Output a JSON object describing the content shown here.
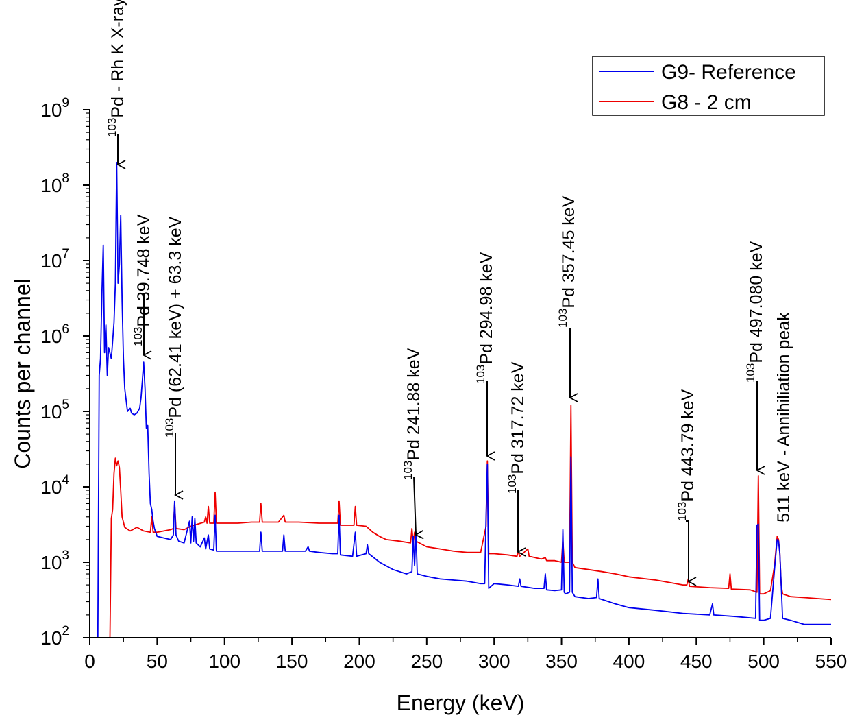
{
  "chart_data": {
    "type": "line",
    "xlabel": "Energy (keV)",
    "ylabel": "Counts per channel",
    "xlim": [
      0,
      550
    ],
    "ylim": [
      100,
      1000000000
    ],
    "yscale": "log",
    "grid": false,
    "legend_position": "top-right",
    "x_ticks": [
      "0",
      "50",
      "100",
      "150",
      "200",
      "250",
      "300",
      "350",
      "400",
      "450",
      "500",
      "550"
    ],
    "y_ticks": [
      {
        "base": "10",
        "exp": "2"
      },
      {
        "base": "10",
        "exp": "3"
      },
      {
        "base": "10",
        "exp": "4"
      },
      {
        "base": "10",
        "exp": "5"
      },
      {
        "base": "10",
        "exp": "6"
      },
      {
        "base": "10",
        "exp": "7"
      },
      {
        "base": "10",
        "exp": "8"
      },
      {
        "base": "10",
        "exp": "9"
      }
    ],
    "series": [
      {
        "name": "G9- Reference",
        "color": "#0000ee",
        "points": [
          [
            6,
            100
          ],
          [
            7,
            300000
          ],
          [
            8,
            500000
          ],
          [
            9,
            3500000
          ],
          [
            10,
            16000000
          ],
          [
            11,
            600000
          ],
          [
            12,
            1400000
          ],
          [
            13,
            300000
          ],
          [
            14,
            700000
          ],
          [
            16,
            500000
          ],
          [
            18,
            1500000
          ],
          [
            19,
            5000000
          ],
          [
            20,
            200000000
          ],
          [
            21,
            5000000
          ],
          [
            22,
            9000000
          ],
          [
            23,
            40000000
          ],
          [
            24,
            3000000
          ],
          [
            25,
            500000
          ],
          [
            26,
            200000
          ],
          [
            28,
            100000
          ],
          [
            30,
            110000
          ],
          [
            31,
            95000
          ],
          [
            33,
            90000
          ],
          [
            35,
            95000
          ],
          [
            37,
            110000
          ],
          [
            38,
            150000
          ],
          [
            39,
            250000
          ],
          [
            40,
            450000
          ],
          [
            41,
            200000
          ],
          [
            42,
            60000
          ],
          [
            43,
            65000
          ],
          [
            44,
            15000
          ],
          [
            45,
            6000
          ],
          [
            46,
            5000
          ],
          [
            47,
            3500
          ],
          [
            48,
            2800
          ],
          [
            50,
            2200
          ],
          [
            55,
            2100
          ],
          [
            60,
            2000
          ],
          [
            62,
            2300
          ],
          [
            63,
            6500
          ],
          [
            64,
            2300
          ],
          [
            66,
            1900
          ],
          [
            70,
            1800
          ],
          [
            74,
            3500
          ],
          [
            75,
            1800
          ],
          [
            76,
            4000
          ],
          [
            77,
            1900
          ],
          [
            78,
            3800
          ],
          [
            79,
            1800
          ],
          [
            82,
            1600
          ],
          [
            85,
            2100
          ],
          [
            86,
            1500
          ],
          [
            88,
            2300
          ],
          [
            89,
            1500
          ],
          [
            92,
            1450
          ],
          [
            93,
            4200
          ],
          [
            94,
            1400
          ],
          [
            100,
            1400
          ],
          [
            110,
            1400
          ],
          [
            120,
            1400
          ],
          [
            126,
            1400
          ],
          [
            127,
            2500
          ],
          [
            128,
            1400
          ],
          [
            140,
            1400
          ],
          [
            143,
            1400
          ],
          [
            144,
            2300
          ],
          [
            145,
            1400
          ],
          [
            160,
            1400
          ],
          [
            162,
            1600
          ],
          [
            163,
            1400
          ],
          [
            170,
            1350
          ],
          [
            180,
            1300
          ],
          [
            184,
            1300
          ],
          [
            185,
            4200
          ],
          [
            186,
            1250
          ],
          [
            195,
            1200
          ],
          [
            197,
            2500
          ],
          [
            198,
            1200
          ],
          [
            205,
            1300
          ],
          [
            206,
            1700
          ],
          [
            207,
            1300
          ],
          [
            215,
            1000
          ],
          [
            225,
            800
          ],
          [
            235,
            700
          ],
          [
            239,
            750
          ],
          [
            240,
            2200
          ],
          [
            241,
            900
          ],
          [
            242,
            2500
          ],
          [
            243,
            700
          ],
          [
            250,
            650
          ],
          [
            260,
            600
          ],
          [
            270,
            580
          ],
          [
            280,
            560
          ],
          [
            290,
            520
          ],
          [
            293,
            520
          ],
          [
            294,
            4000
          ],
          [
            295,
            20000
          ],
          [
            296,
            450
          ],
          [
            300,
            520
          ],
          [
            310,
            500
          ],
          [
            318,
            480
          ],
          [
            319,
            600
          ],
          [
            320,
            480
          ],
          [
            330,
            450
          ],
          [
            337,
            450
          ],
          [
            338,
            700
          ],
          [
            339,
            430
          ],
          [
            345,
            420
          ],
          [
            350,
            430
          ],
          [
            351,
            2700
          ],
          [
            352,
            400
          ],
          [
            353,
            380
          ],
          [
            356,
            400
          ],
          [
            357,
            25000
          ],
          [
            358,
            400
          ],
          [
            360,
            350
          ],
          [
            370,
            330
          ],
          [
            376,
            340
          ],
          [
            377,
            600
          ],
          [
            378,
            330
          ],
          [
            390,
            280
          ],
          [
            400,
            250
          ],
          [
            420,
            230
          ],
          [
            440,
            210
          ],
          [
            460,
            200
          ],
          [
            462,
            280
          ],
          [
            463,
            200
          ],
          [
            480,
            190
          ],
          [
            494,
            180
          ],
          [
            495,
            3100
          ],
          [
            496,
            3200
          ],
          [
            497,
            170
          ],
          [
            500,
            170
          ],
          [
            505,
            180
          ],
          [
            508,
            800
          ],
          [
            510,
            2000
          ],
          [
            511,
            1900
          ],
          [
            512,
            1300
          ],
          [
            513,
            500
          ],
          [
            514,
            180
          ],
          [
            520,
            170
          ],
          [
            530,
            150
          ],
          [
            540,
            150
          ],
          [
            550,
            150
          ]
        ]
      },
      {
        "name": "G8 - 2 cm",
        "color": "#ee0000",
        "points": [
          [
            14,
            100
          ],
          [
            15,
            100
          ],
          [
            16,
            3800
          ],
          [
            17,
            5000
          ],
          [
            18,
            15000
          ],
          [
            19,
            24000
          ],
          [
            20,
            19000
          ],
          [
            21,
            22000
          ],
          [
            22,
            18000
          ],
          [
            23,
            9000
          ],
          [
            24,
            4000
          ],
          [
            26,
            2900
          ],
          [
            30,
            2600
          ],
          [
            35,
            2900
          ],
          [
            40,
            2600
          ],
          [
            45,
            2500
          ],
          [
            46,
            4000
          ],
          [
            47,
            2500
          ],
          [
            50,
            2500
          ],
          [
            55,
            2600
          ],
          [
            60,
            2700
          ],
          [
            62,
            2800
          ],
          [
            63,
            6000
          ],
          [
            64,
            2800
          ],
          [
            70,
            2700
          ],
          [
            75,
            3000
          ],
          [
            80,
            3200
          ],
          [
            85,
            3400
          ],
          [
            86,
            4000
          ],
          [
            87,
            3300
          ],
          [
            88,
            5500
          ],
          [
            89,
            3300
          ],
          [
            92,
            3300
          ],
          [
            93,
            8500
          ],
          [
            94,
            3300
          ],
          [
            100,
            3300
          ],
          [
            110,
            3300
          ],
          [
            120,
            3400
          ],
          [
            126,
            3400
          ],
          [
            127,
            6000
          ],
          [
            128,
            3400
          ],
          [
            140,
            3400
          ],
          [
            144,
            4200
          ],
          [
            145,
            3400
          ],
          [
            155,
            3400
          ],
          [
            170,
            3300
          ],
          [
            184,
            3300
          ],
          [
            185,
            6500
          ],
          [
            186,
            3100
          ],
          [
            196,
            3100
          ],
          [
            197,
            5500
          ],
          [
            198,
            3100
          ],
          [
            205,
            3000
          ],
          [
            210,
            2500
          ],
          [
            215,
            2200
          ],
          [
            220,
            2000
          ],
          [
            230,
            1900
          ],
          [
            238,
            1800
          ],
          [
            239,
            2800
          ],
          [
            240,
            1800
          ],
          [
            241,
            2500
          ],
          [
            242,
            1900
          ],
          [
            250,
            1600
          ],
          [
            260,
            1500
          ],
          [
            270,
            1400
          ],
          [
            280,
            1350
          ],
          [
            290,
            1350
          ],
          [
            294,
            3000
          ],
          [
            295,
            22000
          ],
          [
            296,
            1300
          ],
          [
            300,
            1300
          ],
          [
            310,
            1250
          ],
          [
            317,
            1200
          ],
          [
            318,
            1400
          ],
          [
            319,
            1200
          ],
          [
            325,
            1500
          ],
          [
            326,
            1200
          ],
          [
            335,
            1100
          ],
          [
            338,
            1150
          ],
          [
            339,
            1050
          ],
          [
            345,
            1050
          ],
          [
            350,
            1000
          ],
          [
            351,
            2000
          ],
          [
            352,
            1000
          ],
          [
            356,
            1000
          ],
          [
            357,
            120000
          ],
          [
            358,
            1000
          ],
          [
            360,
            850
          ],
          [
            370,
            800
          ],
          [
            380,
            750
          ],
          [
            390,
            700
          ],
          [
            400,
            640
          ],
          [
            420,
            580
          ],
          [
            440,
            500
          ],
          [
            443,
            500
          ],
          [
            444,
            600
          ],
          [
            445,
            480
          ],
          [
            460,
            460
          ],
          [
            474,
            450
          ],
          [
            475,
            700
          ],
          [
            476,
            440
          ],
          [
            490,
            430
          ],
          [
            495,
            400
          ],
          [
            496,
            14000
          ],
          [
            497,
            380
          ],
          [
            500,
            380
          ],
          [
            505,
            420
          ],
          [
            508,
            900
          ],
          [
            510,
            2200
          ],
          [
            511,
            2000
          ],
          [
            512,
            1300
          ],
          [
            513,
            500
          ],
          [
            514,
            380
          ],
          [
            520,
            350
          ],
          [
            530,
            340
          ],
          [
            540,
            330
          ],
          [
            550,
            320
          ]
        ]
      }
    ],
    "annotations": [
      {
        "id": "a1",
        "mass": "103",
        "text": "Pd - Rh K X-rays"
      },
      {
        "id": "a2",
        "mass": "103",
        "text": "Pd 39.748 keV"
      },
      {
        "id": "a3",
        "mass": "103",
        "text": "Pd (62.41 keV) + 63.3 keV"
      },
      {
        "id": "a4",
        "mass": "103",
        "text": "Pd 241.88 keV"
      },
      {
        "id": "a5",
        "mass": "103",
        "text": "Pd 294.98 keV"
      },
      {
        "id": "a6",
        "mass": "103",
        "text": "Pd 317.72 keV"
      },
      {
        "id": "a7",
        "mass": "103",
        "text": "Pd 357.45 keV"
      },
      {
        "id": "a8",
        "mass": "103",
        "text": "Pd 443.79 keV"
      },
      {
        "id": "a9",
        "mass": "103",
        "text": "Pd 497.080 keV"
      },
      {
        "id": "a10",
        "mass": "",
        "text": "511 keV - Annihiliation peak"
      }
    ]
  }
}
